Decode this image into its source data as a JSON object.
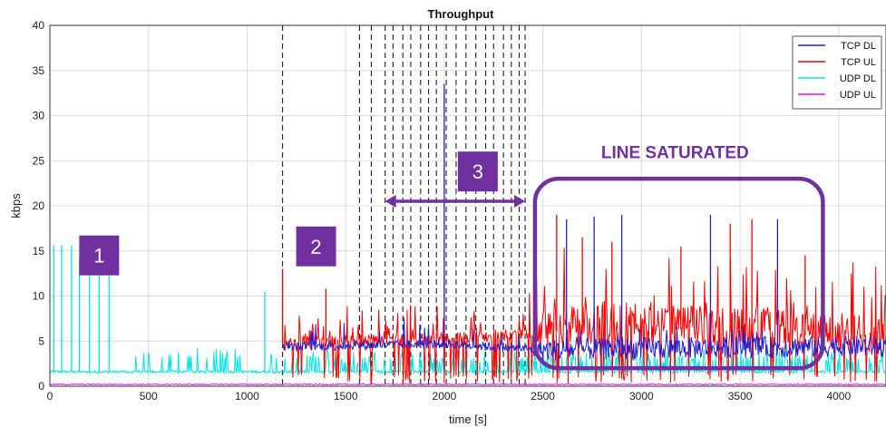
{
  "chart_data": {
    "type": "line",
    "title": "Throughput",
    "xlabel": "time [s]",
    "ylabel": "kbps",
    "xlim": [
      0,
      4240
    ],
    "ylim": [
      0,
      40
    ],
    "xticks": [
      0,
      500,
      1000,
      1500,
      2000,
      2500,
      3000,
      3500,
      4000
    ],
    "yticks": [
      0,
      5,
      10,
      15,
      20,
      25,
      30,
      35,
      40
    ],
    "grid": true,
    "legend_position": "top-right",
    "series": [
      {
        "name": "TCP DL",
        "color": "#1f1fd6",
        "description_points": [
          [
            1180,
            4.3
          ],
          [
            1500,
            4.5
          ],
          [
            2000,
            4.7
          ],
          [
            2500,
            4.0
          ],
          [
            3000,
            4.2
          ],
          [
            3500,
            4.3
          ],
          [
            4000,
            4.4
          ],
          [
            4240,
            4.4
          ]
        ],
        "spikes": [
          [
            2000,
            33.5
          ],
          [
            2620,
            18.5
          ],
          [
            2760,
            18.8
          ],
          [
            2900,
            19.0
          ],
          [
            3350,
            19.0
          ],
          [
            3690,
            18.5
          ]
        ]
      },
      {
        "name": "TCP UL",
        "color": "#ff0000",
        "description_points": [
          [
            1180,
            4.5
          ],
          [
            1500,
            4.9
          ],
          [
            2000,
            5.0
          ],
          [
            2500,
            6.0
          ],
          [
            3000,
            6.5
          ],
          [
            3500,
            6.0
          ],
          [
            4000,
            5.5
          ],
          [
            4240,
            5.5
          ]
        ],
        "spikes": [
          [
            1180,
            13.0
          ],
          [
            1400,
            10.8
          ],
          [
            2570,
            19.0
          ],
          [
            2700,
            16.5
          ],
          [
            2850,
            16.0
          ],
          [
            3200,
            15.5
          ],
          [
            3450,
            18.0
          ],
          [
            3560,
            18.5
          ],
          [
            3830,
            14.5
          ]
        ]
      },
      {
        "name": "UDP DL",
        "color": "#00e5e5",
        "description_points": [
          [
            0,
            1.6
          ],
          [
            300,
            1.6
          ],
          [
            1000,
            1.6
          ],
          [
            2000,
            1.6
          ],
          [
            3000,
            1.6
          ],
          [
            4240,
            1.6
          ]
        ],
        "spikes": [
          [
            20,
            15.6
          ],
          [
            60,
            15.6
          ],
          [
            110,
            15.6
          ],
          [
            150,
            14.2
          ],
          [
            200,
            13.8
          ],
          [
            250,
            13.2
          ],
          [
            300,
            14.0
          ],
          [
            1090,
            10.5
          ]
        ]
      },
      {
        "name": "UDP UL",
        "color": "#ff00ff",
        "description_points": [
          [
            0,
            0.2
          ],
          [
            4240,
            0.2
          ]
        ],
        "spikes": []
      }
    ],
    "vlines_dashed": [
      1180,
      1570,
      1630,
      1700,
      1740,
      1790,
      1830,
      1880,
      1920,
      1960,
      2010,
      2060,
      2110,
      2160,
      2210,
      2250,
      2300,
      2340,
      2380,
      2410
    ],
    "annotations": [
      {
        "label": "1",
        "x": 250,
        "y": 14.5
      },
      {
        "label": "2",
        "x": 1350,
        "y": 15.5
      },
      {
        "label": "3",
        "x": 2170,
        "y": 23.8
      },
      {
        "label": "LINE SATURATED",
        "x": 3170,
        "y": 25.5
      },
      {
        "type": "double-arrow",
        "x_from": 1700,
        "x_to": 2410,
        "y": 20.5
      },
      {
        "type": "rounded-rect",
        "x_from": 2460,
        "x_to": 3920,
        "y_from": 2.0,
        "y_to": 23.0
      }
    ]
  }
}
